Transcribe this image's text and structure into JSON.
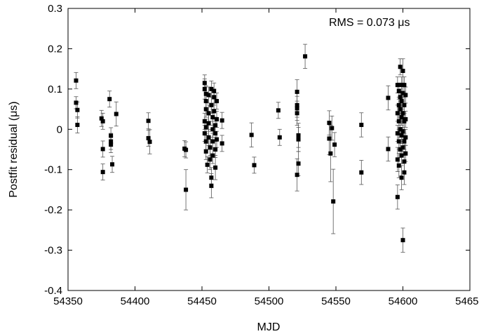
{
  "chart_data": {
    "type": "scatter",
    "xlabel": "MJD",
    "ylabel": "Postfit residual (μs)",
    "annotation": "RMS = 0.073 μs",
    "xlim": [
      54350,
      54650
    ],
    "ylim": [
      -0.4,
      0.3
    ],
    "xticks": [
      54350,
      54400,
      54450,
      54500,
      54550,
      54600,
      54650
    ],
    "yticks": [
      -0.4,
      -0.3,
      -0.2,
      -0.1,
      0,
      0.1,
      0.2,
      0.3
    ],
    "grid": false,
    "marker_color": "#000000",
    "points": [
      {
        "x": 54356,
        "y": 0.121,
        "err": 0.02
      },
      {
        "x": 54356,
        "y": 0.066,
        "err": 0.015
      },
      {
        "x": 54357,
        "y": 0.048,
        "err": 0.02
      },
      {
        "x": 54357,
        "y": 0.011,
        "err": 0.02
      },
      {
        "x": 54375,
        "y": 0.027,
        "err": 0.02
      },
      {
        "x": 54376,
        "y": 0.02,
        "err": 0.02
      },
      {
        "x": 54376,
        "y": -0.049,
        "err": 0.02
      },
      {
        "x": 54376,
        "y": -0.106,
        "err": 0.02
      },
      {
        "x": 54381,
        "y": 0.075,
        "err": 0.02
      },
      {
        "x": 54382,
        "y": -0.016,
        "err": 0.02
      },
      {
        "x": 54382,
        "y": -0.03,
        "err": 0.02
      },
      {
        "x": 54382,
        "y": -0.038,
        "err": 0.02
      },
      {
        "x": 54383,
        "y": -0.087,
        "err": 0.02
      },
      {
        "x": 54386,
        "y": 0.038,
        "err": 0.03
      },
      {
        "x": 54410,
        "y": 0.021,
        "err": 0.02
      },
      {
        "x": 54410,
        "y": -0.022,
        "err": 0.02
      },
      {
        "x": 54411,
        "y": -0.031,
        "err": 0.03
      },
      {
        "x": 54437,
        "y": -0.048,
        "err": 0.02
      },
      {
        "x": 54438,
        "y": -0.051,
        "err": 0.02
      },
      {
        "x": 54438,
        "y": -0.15,
        "err": 0.05
      },
      {
        "x": 54452,
        "y": 0.115,
        "err": 0.02
      },
      {
        "x": 54452,
        "y": 0.1,
        "err": 0.025
      },
      {
        "x": 54453,
        "y": 0.088,
        "err": 0.02
      },
      {
        "x": 54453,
        "y": 0.07,
        "err": 0.02
      },
      {
        "x": 54453,
        "y": 0.05,
        "err": 0.02
      },
      {
        "x": 54452,
        "y": 0.02,
        "err": 0.02
      },
      {
        "x": 54453,
        "y": 0.005,
        "err": 0.02
      },
      {
        "x": 54452,
        "y": -0.01,
        "err": 0.02
      },
      {
        "x": 54453,
        "y": -0.03,
        "err": 0.02
      },
      {
        "x": 54453,
        "y": -0.055,
        "err": 0.02
      },
      {
        "x": 54454,
        "y": -0.088,
        "err": 0.02
      },
      {
        "x": 54455,
        "y": 0.085,
        "err": 0.02
      },
      {
        "x": 54455,
        "y": 0.04,
        "err": 0.02
      },
      {
        "x": 54455,
        "y": 0.015,
        "err": 0.02
      },
      {
        "x": 54455,
        "y": -0.02,
        "err": 0.02
      },
      {
        "x": 54456,
        "y": -0.045,
        "err": 0.02
      },
      {
        "x": 54456,
        "y": -0.075,
        "err": 0.025
      },
      {
        "x": 54457,
        "y": -0.12,
        "err": 0.025
      },
      {
        "x": 54457,
        "y": -0.14,
        "err": 0.03
      },
      {
        "x": 54457,
        "y": 0.1,
        "err": 0.02
      },
      {
        "x": 54457,
        "y": 0.06,
        "err": 0.02
      },
      {
        "x": 54458,
        "y": 0.03,
        "err": 0.02
      },
      {
        "x": 54458,
        "y": 0.0,
        "err": 0.02
      },
      {
        "x": 54458,
        "y": -0.03,
        "err": 0.02
      },
      {
        "x": 54458,
        "y": -0.065,
        "err": 0.02
      },
      {
        "x": 54459,
        "y": 0.095,
        "err": 0.02
      },
      {
        "x": 54459,
        "y": 0.08,
        "err": 0.02
      },
      {
        "x": 54459,
        "y": 0.045,
        "err": 0.02
      },
      {
        "x": 54460,
        "y": 0.01,
        "err": 0.02
      },
      {
        "x": 54460,
        "y": -0.01,
        "err": 0.02
      },
      {
        "x": 54460,
        "y": -0.05,
        "err": 0.02
      },
      {
        "x": 54460,
        "y": -0.095,
        "err": 0.03
      },
      {
        "x": 54461,
        "y": 0.07,
        "err": 0.02
      },
      {
        "x": 54461,
        "y": 0.025,
        "err": 0.02
      },
      {
        "x": 54461,
        "y": -0.025,
        "err": 0.02
      },
      {
        "x": 54465,
        "y": 0.022,
        "err": 0.02
      },
      {
        "x": 54465,
        "y": -0.035,
        "err": 0.02
      },
      {
        "x": 54487,
        "y": -0.014,
        "err": 0.03
      },
      {
        "x": 54489,
        "y": -0.089,
        "err": 0.02
      },
      {
        "x": 54507,
        "y": 0.047,
        "err": 0.02
      },
      {
        "x": 54508,
        "y": -0.02,
        "err": 0.02
      },
      {
        "x": 54521,
        "y": 0.093,
        "err": 0.03
      },
      {
        "x": 54521,
        "y": 0.06,
        "err": 0.03
      },
      {
        "x": 54521,
        "y": 0.052,
        "err": 0.03
      },
      {
        "x": 54521,
        "y": 0.04,
        "err": 0.03
      },
      {
        "x": 54522,
        "y": -0.015,
        "err": 0.03
      },
      {
        "x": 54522,
        "y": -0.025,
        "err": 0.03
      },
      {
        "x": 54522,
        "y": -0.085,
        "err": 0.03
      },
      {
        "x": 54521,
        "y": -0.113,
        "err": 0.04
      },
      {
        "x": 54527,
        "y": 0.181,
        "err": 0.03
      },
      {
        "x": 54545,
        "y": 0.016,
        "err": 0.03
      },
      {
        "x": 54545,
        "y": -0.023,
        "err": 0.04
      },
      {
        "x": 54546,
        "y": -0.06,
        "err": 0.07
      },
      {
        "x": 54547,
        "y": 0.003,
        "err": 0.03
      },
      {
        "x": 54548,
        "y": -0.179,
        "err": 0.08
      },
      {
        "x": 54549,
        "y": -0.038,
        "err": 0.03
      },
      {
        "x": 54569,
        "y": 0.011,
        "err": 0.03
      },
      {
        "x": 54569,
        "y": -0.107,
        "err": 0.03
      },
      {
        "x": 54589,
        "y": 0.078,
        "err": 0.03
      },
      {
        "x": 54589,
        "y": -0.049,
        "err": 0.03
      },
      {
        "x": 54596,
        "y": 0.11,
        "err": 0.02
      },
      {
        "x": 54596,
        "y": 0.04,
        "err": 0.02
      },
      {
        "x": 54596,
        "y": -0.01,
        "err": 0.02
      },
      {
        "x": 54596,
        "y": -0.075,
        "err": 0.03
      },
      {
        "x": 54596,
        "y": -0.168,
        "err": 0.03
      },
      {
        "x": 54597,
        "y": 0.095,
        "err": 0.02
      },
      {
        "x": 54597,
        "y": 0.06,
        "err": 0.02
      },
      {
        "x": 54597,
        "y": 0.02,
        "err": 0.02
      },
      {
        "x": 54597,
        "y": -0.03,
        "err": 0.02
      },
      {
        "x": 54597,
        "y": -0.09,
        "err": 0.03
      },
      {
        "x": 54598,
        "y": 0.155,
        "err": 0.02
      },
      {
        "x": 54598,
        "y": 0.08,
        "err": 0.02
      },
      {
        "x": 54598,
        "y": 0.05,
        "err": 0.02
      },
      {
        "x": 54598,
        "y": 0.0,
        "err": 0.02
      },
      {
        "x": 54598,
        "y": -0.05,
        "err": 0.02
      },
      {
        "x": 54599,
        "y": 0.11,
        "err": 0.02
      },
      {
        "x": 54599,
        "y": 0.07,
        "err": 0.02
      },
      {
        "x": 54599,
        "y": 0.03,
        "err": 0.02
      },
      {
        "x": 54599,
        "y": -0.015,
        "err": 0.02
      },
      {
        "x": 54599,
        "y": -0.065,
        "err": 0.02
      },
      {
        "x": 54599,
        "y": -0.12,
        "err": 0.03
      },
      {
        "x": 54600,
        "y": 0.145,
        "err": 0.03
      },
      {
        "x": 54600,
        "y": 0.09,
        "err": 0.02
      },
      {
        "x": 54600,
        "y": 0.04,
        "err": 0.02
      },
      {
        "x": 54600,
        "y": -0.005,
        "err": 0.02
      },
      {
        "x": 54600,
        "y": -0.045,
        "err": 0.02
      },
      {
        "x": 54600,
        "y": -0.275,
        "err": 0.03
      },
      {
        "x": 54601,
        "y": 0.11,
        "err": 0.02
      },
      {
        "x": 54601,
        "y": 0.06,
        "err": 0.02
      },
      {
        "x": 54601,
        "y": 0.02,
        "err": 0.02
      },
      {
        "x": 54601,
        "y": -0.03,
        "err": 0.02
      },
      {
        "x": 54601,
        "y": -0.08,
        "err": 0.025
      },
      {
        "x": 54601,
        "y": -0.107,
        "err": 0.03
      },
      {
        "x": 54602,
        "y": 0.085,
        "err": 0.02
      },
      {
        "x": 54602,
        "y": 0.025,
        "err": 0.02
      },
      {
        "x": 54602,
        "y": -0.02,
        "err": 0.02
      },
      {
        "x": 54602,
        "y": -0.06,
        "err": 0.02
      }
    ]
  }
}
